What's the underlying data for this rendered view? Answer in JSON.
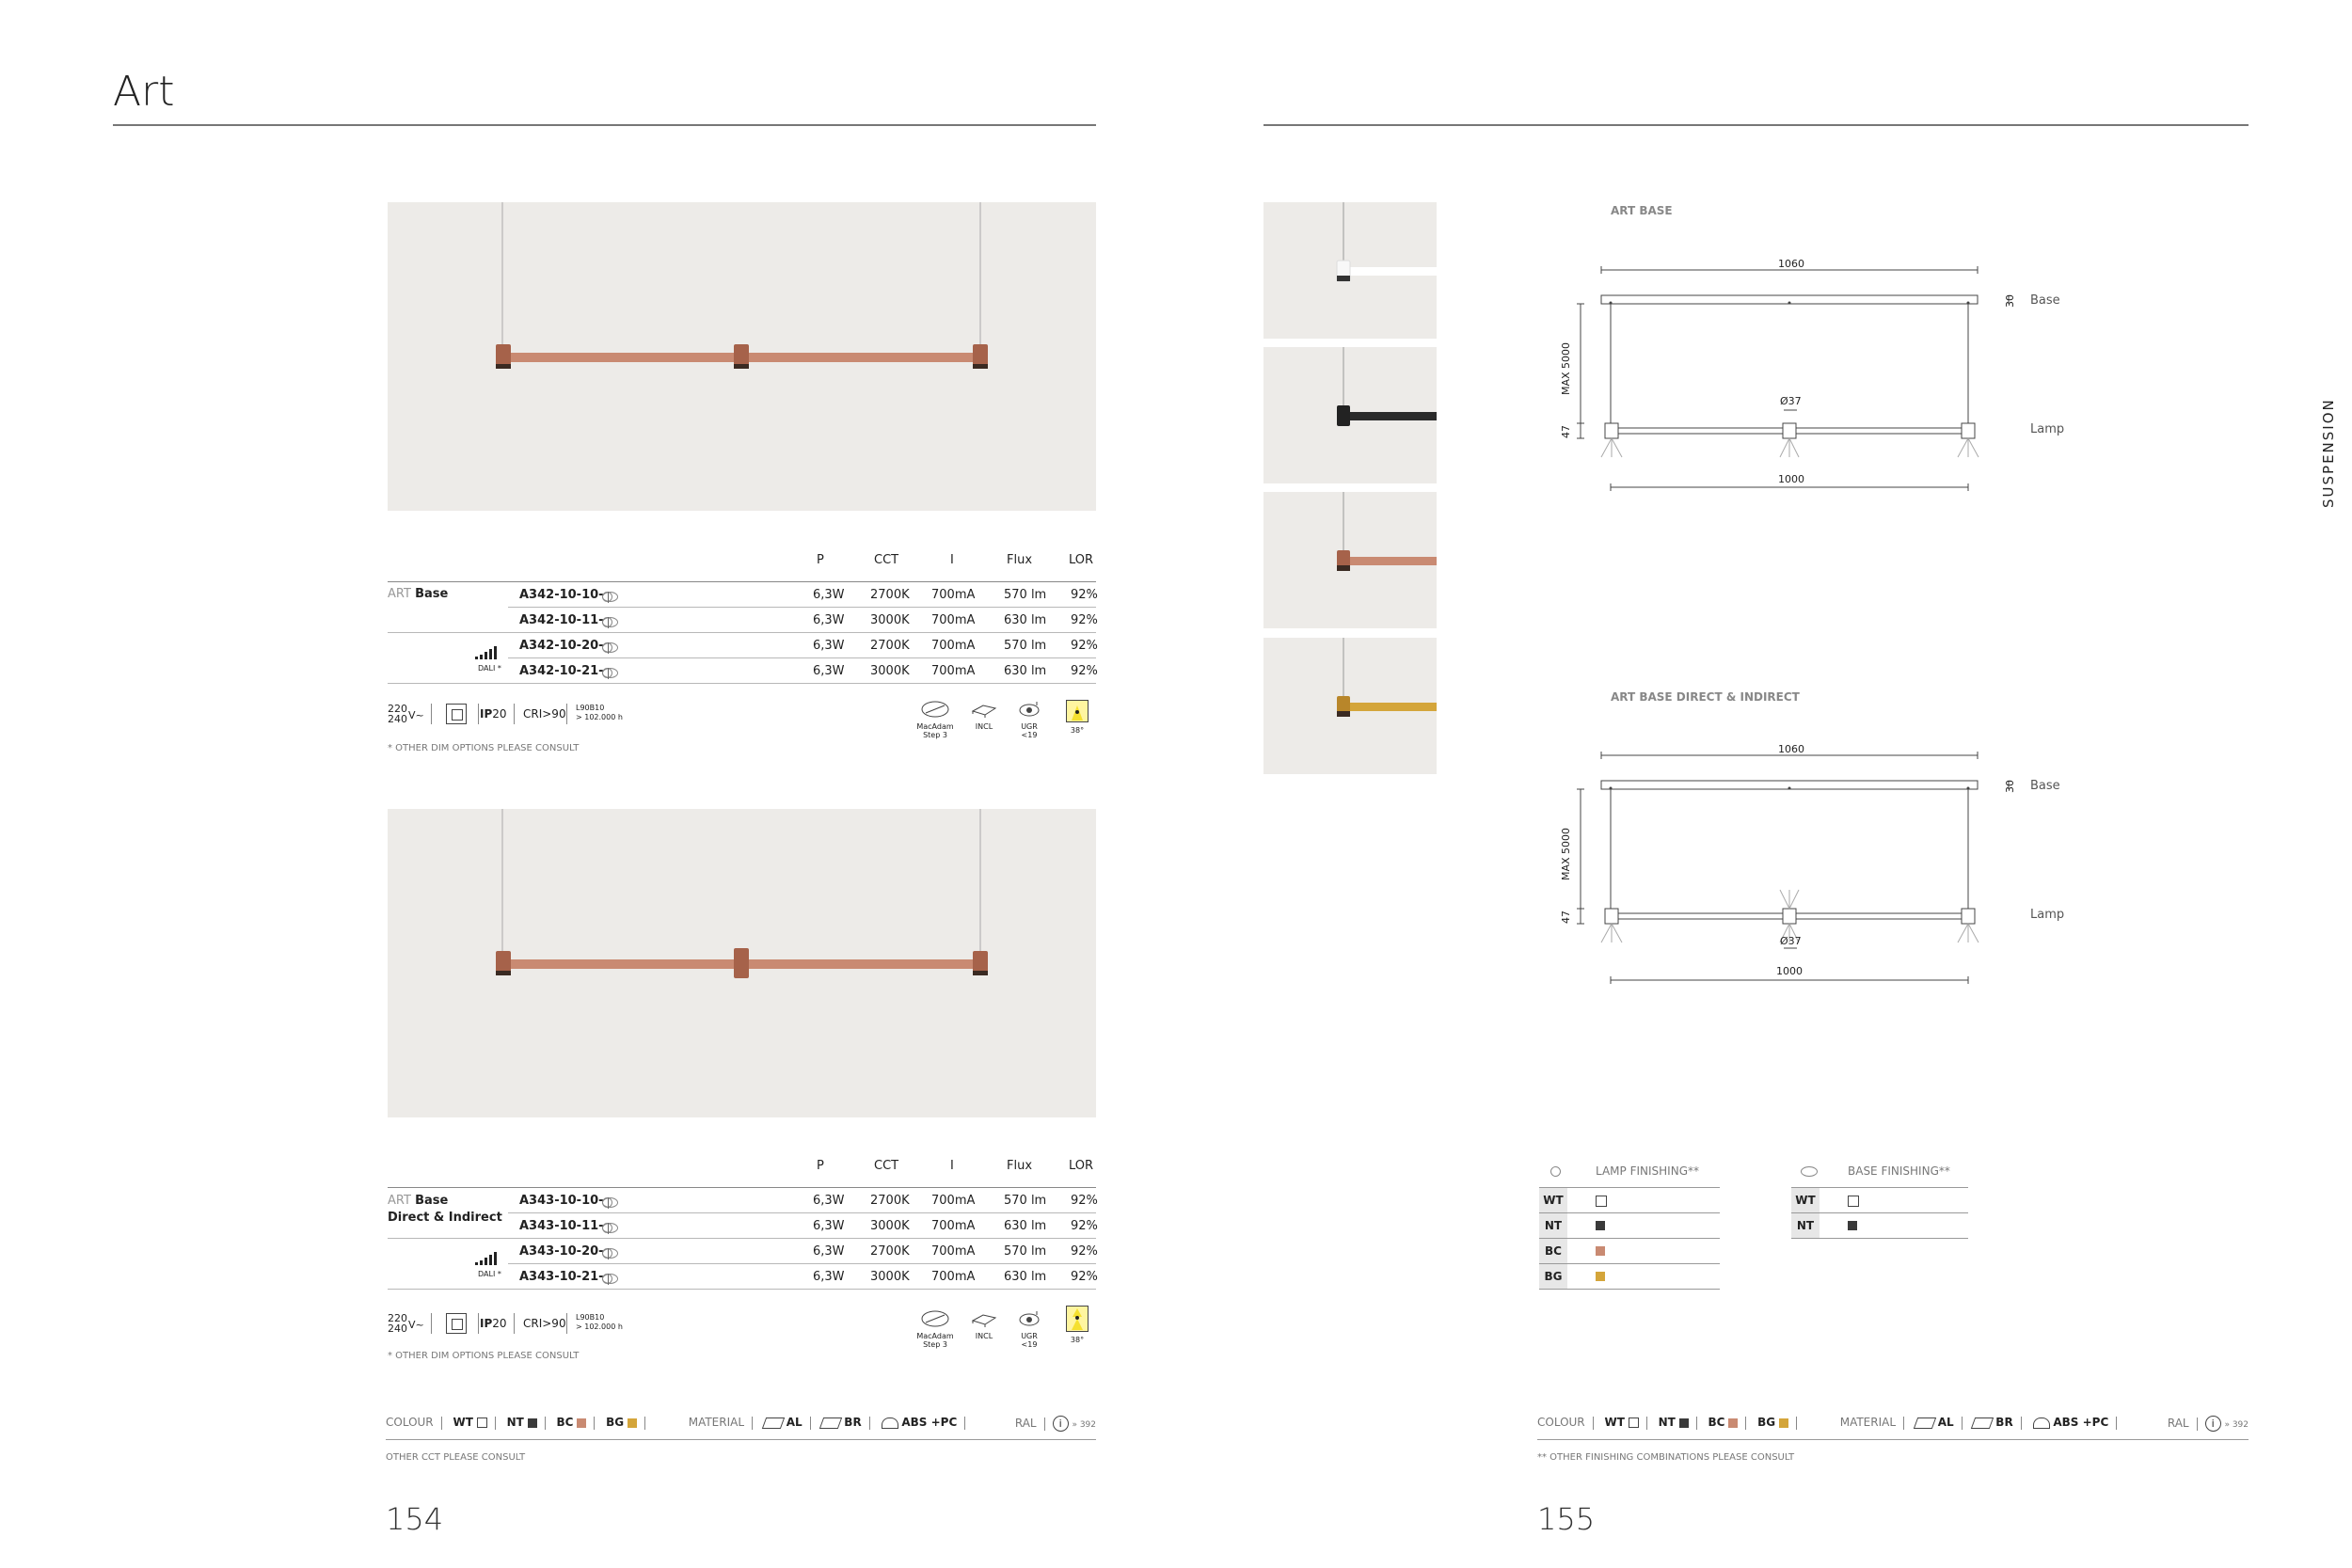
{
  "left_page": {
    "title": "Art",
    "page_number": "154",
    "product1": {
      "headers": [
        "P",
        "CCT",
        "I",
        "Flux",
        "LOR"
      ],
      "label_prefix": "ART",
      "label_name": "Base",
      "dali_label": "DALI *",
      "rows": [
        {
          "code": "A342-10-10-",
          "p": "6,3W",
          "cct": "2700K",
          "i": "700mA",
          "flux": "570 lm",
          "lor": "92%"
        },
        {
          "code": "A342-10-11-",
          "p": "6,3W",
          "cct": "3000K",
          "i": "700mA",
          "flux": "630 lm",
          "lor": "92%"
        },
        {
          "code": "A342-10-20-",
          "p": "6,3W",
          "cct": "2700K",
          "i": "700mA",
          "flux": "570 lm",
          "lor": "92%"
        },
        {
          "code": "A342-10-21-",
          "p": "6,3W",
          "cct": "3000K",
          "i": "700mA",
          "flux": "630 lm",
          "lor": "92%"
        }
      ],
      "note": "* OTHER DIM OPTIONS PLEASE CONSULT"
    },
    "product2": {
      "headers": [
        "P",
        "CCT",
        "I",
        "Flux",
        "LOR"
      ],
      "label_prefix": "ART",
      "label_name": "Base",
      "label_name2": "Direct & Indirect",
      "dali_label": "DALI *",
      "rows": [
        {
          "code": "A343-10-10-",
          "p": "6,3W",
          "cct": "2700K",
          "i": "700mA",
          "flux": "570 lm",
          "lor": "92%"
        },
        {
          "code": "A343-10-11-",
          "p": "6,3W",
          "cct": "3000K",
          "i": "700mA",
          "flux": "630 lm",
          "lor": "92%"
        },
        {
          "code": "A343-10-20-",
          "p": "6,3W",
          "cct": "2700K",
          "i": "700mA",
          "flux": "570 lm",
          "lor": "92%"
        },
        {
          "code": "A343-10-21-",
          "p": "6,3W",
          "cct": "3000K",
          "i": "700mA",
          "flux": "630 lm",
          "lor": "92%"
        }
      ],
      "note": "* OTHER DIM OPTIONS PLEASE CONSULT"
    },
    "specs": {
      "voltage_top": "220",
      "voltage_bottom": "240",
      "voltage_unit": "V~",
      "ip_prefix": "IP",
      "ip_value": "20",
      "cri": "CRI>90",
      "life_top": "L90B10",
      "life_bottom": "> 102.000 h",
      "macadam": "MacAdam",
      "macadam2": "Step 3",
      "incl": "INCL",
      "ugr": "UGR <19",
      "beam": "38°"
    },
    "footer": {
      "colour_label": "COLOUR",
      "colours": [
        "WT",
        "NT",
        "BC",
        "BG"
      ],
      "material_label": "MATERIAL",
      "materials": [
        "AL",
        "BR",
        "ABS +PC"
      ],
      "ral_label": "RAL",
      "ral_page": "» 392",
      "note": "OTHER CCT PLEASE CONSULT"
    }
  },
  "right_page": {
    "page_number": "155",
    "side_label": "SUSPENSION",
    "diagram1": {
      "title": "ART BASE",
      "width_top": "1060",
      "height_label": "MAX 5000",
      "base_h": "30",
      "lamp_h": "47",
      "diameter": "Ø37",
      "width_bottom": "1000",
      "base_label": "Base",
      "lamp_label": "Lamp"
    },
    "diagram2": {
      "title": "ART BASE DIRECT & INDIRECT",
      "width_top": "1060",
      "height_label": "MAX 5000",
      "base_h": "30",
      "lamp_h": "47",
      "diameter": "Ø37",
      "width_bottom": "1000",
      "base_label": "Base",
      "lamp_label": "Lamp"
    },
    "lamp_finishing": {
      "title": "LAMP FINISHING**",
      "rows": [
        {
          "code": "WT",
          "color": "#ffffff"
        },
        {
          "code": "NT",
          "color": "#3a3a3a"
        },
        {
          "code": "BC",
          "color": "#c98a72"
        },
        {
          "code": "BG",
          "color": "#d4a53a"
        }
      ]
    },
    "base_finishing": {
      "title": "BASE FINISHING**",
      "rows": [
        {
          "code": "WT",
          "color": "#ffffff"
        },
        {
          "code": "NT",
          "color": "#3a3a3a"
        }
      ]
    },
    "footer": {
      "colour_label": "COLOUR",
      "colours": [
        "WT",
        "NT",
        "BC",
        "BG"
      ],
      "material_label": "MATERIAL",
      "materials": [
        "AL",
        "BR",
        "ABS +PC"
      ],
      "ral_label": "RAL",
      "ral_page": "» 392",
      "note": "** OTHER FINISHING COMBINATIONS PLEASE CONSULT"
    }
  },
  "colors": {
    "copper": "#c98a72",
    "gold": "#d4a53a",
    "black": "#2a2a2a",
    "white": "#ffffff",
    "photo_bg": "#edebe8"
  }
}
